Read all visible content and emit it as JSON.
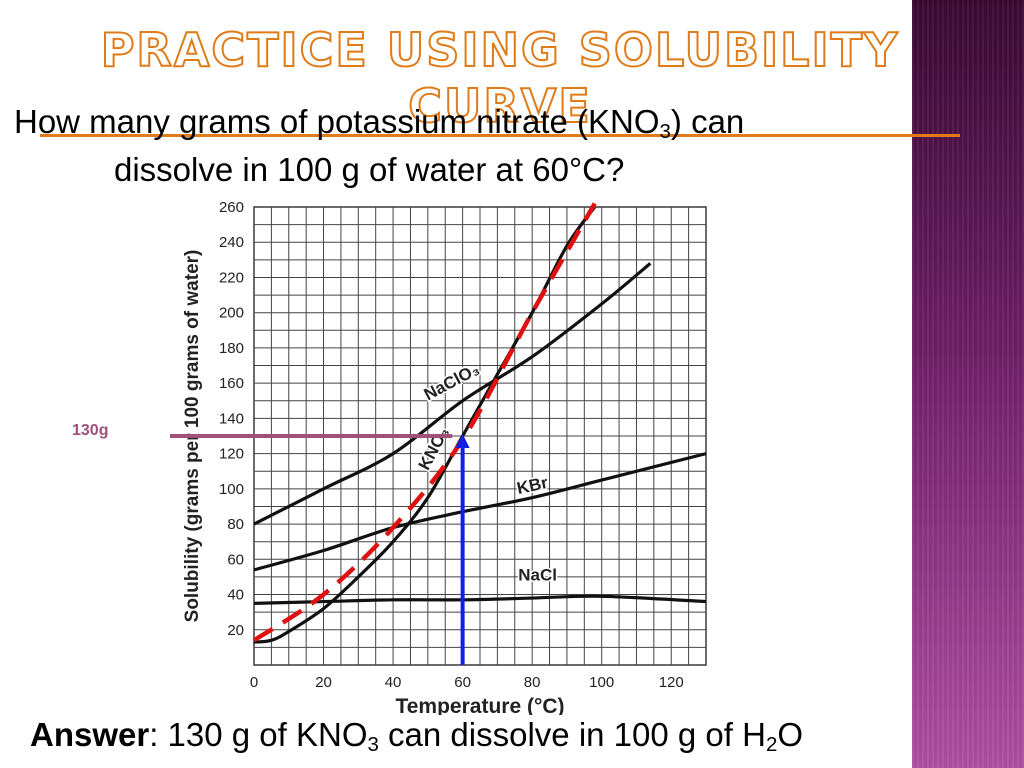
{
  "slide": {
    "title": "PRACTICE USING SOLUBILITY CURVE",
    "question_line1_a": "How many grams of potassium nitrate (KNO",
    "question_line1_sub": "3",
    "question_line1_b": ") can",
    "question_line2": "dissolve in 100 g of water at 60°C?",
    "answer_label": "Answer",
    "answer_text_a": ": 130 g of KNO",
    "answer_sub1": "3",
    "answer_text_b": " can dissolve in 100 g of H",
    "answer_sub2": "2",
    "answer_text_c": "O",
    "marker_label": "130g"
  },
  "colors": {
    "title_outline": "#e07b1a",
    "arrow_vertical": "#1020e0",
    "arrow_horizontal": "#a0507a",
    "dashed_fit": "#e01010",
    "curves": "#111111"
  },
  "chart_data": {
    "type": "line",
    "xlabel": "Temperature (°C)",
    "ylabel": "Solubility (grams per 100 grams of water)",
    "xlim": [
      0,
      130
    ],
    "ylim": [
      0,
      260
    ],
    "x_ticks": [
      0,
      20,
      40,
      60,
      80,
      100,
      120
    ],
    "y_ticks": [
      20,
      40,
      60,
      80,
      100,
      120,
      140,
      160,
      180,
      200,
      220,
      240,
      260
    ],
    "grid": true,
    "series": [
      {
        "name": "NaClO₃",
        "x": [
          0,
          20,
          40,
          60,
          80,
          100,
          114
        ],
        "y": [
          80,
          100,
          120,
          150,
          175,
          205,
          228
        ],
        "label_at": [
          50,
          150
        ]
      },
      {
        "name": "KNO₃",
        "x": [
          0,
          5,
          10,
          20,
          30,
          40,
          50,
          60,
          70,
          80,
          90,
          98
        ],
        "y": [
          13,
          14,
          19,
          32,
          50,
          70,
          95,
          130,
          165,
          200,
          238,
          260
        ],
        "label_at": [
          50,
          110
        ]
      },
      {
        "name": "KBr",
        "x": [
          0,
          20,
          40,
          60,
          80,
          100,
          130
        ],
        "y": [
          54,
          65,
          78,
          87,
          95,
          105,
          120
        ],
        "label_at": [
          76,
          97
        ]
      },
      {
        "name": "NaCl",
        "x": [
          0,
          20,
          40,
          60,
          80,
          100,
          130
        ],
        "y": [
          35,
          36,
          37,
          37,
          38,
          39,
          36
        ],
        "label_at": [
          76,
          48
        ]
      }
    ],
    "annotations": [
      {
        "type": "dashed-fit",
        "points": [
          [
            0,
            14
          ],
          [
            20,
            40
          ],
          [
            40,
            78
          ],
          [
            60,
            128
          ],
          [
            80,
            200
          ],
          [
            98,
            262
          ]
        ]
      },
      {
        "type": "arrow-up",
        "x": 60,
        "y_from": 0,
        "y_to": 130
      },
      {
        "type": "arrow-left",
        "y": 130,
        "x_from": 57,
        "x_to": -30,
        "label": "130g"
      }
    ]
  }
}
